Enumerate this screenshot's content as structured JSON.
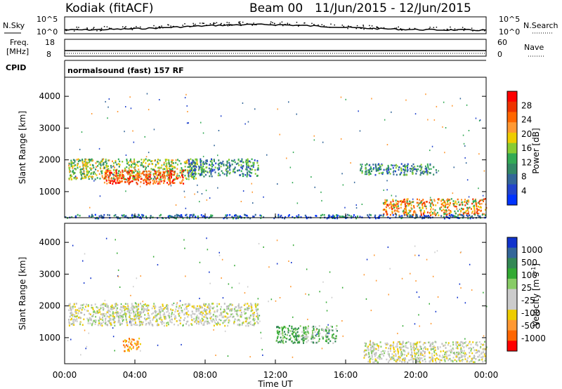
{
  "header": {
    "radar": "Kodiak (fitACF)",
    "beam": "Beam 00",
    "dates": "11/Jun/2015 - 12/Jun/2015"
  },
  "panels_top": {
    "nsky_label": "N.Sky",
    "nsky_ticks": [
      "10^5",
      "10^0"
    ],
    "nsearch_label": "N.Search",
    "nsearch_ticks": [
      "10^5",
      "10^0"
    ],
    "freq_label_1": "Freq.",
    "freq_label_2": "[MHz]",
    "freq_ticks": [
      "18",
      "8"
    ],
    "nave_label": "Nave",
    "nave_ticks": [
      "60",
      "0"
    ],
    "cpid_label": "CPID",
    "cpid_text": "normalsound (fast) 157 RF"
  },
  "axes": {
    "ylabel": "Slant Range [km]",
    "yticks": [
      "4000",
      "3000",
      "2000",
      "1000"
    ],
    "xticks": [
      "00:00",
      "04:00",
      "08:00",
      "12:00",
      "16:00",
      "20:00",
      "00:00"
    ],
    "xlabel": "Time UT"
  },
  "power_colorbar": {
    "label": "Power [dB]",
    "ticks": [
      "28",
      "24",
      "20",
      "16",
      "12",
      "8",
      "4"
    ],
    "colors": [
      "#ff0000",
      "#ee3300",
      "#ff6600",
      "#ff9933",
      "#eecc00",
      "#88cc33",
      "#33aa55",
      "#338866",
      "#336699",
      "#2244cc",
      "#0033ff"
    ]
  },
  "velocity_colorbar": {
    "label": "Velocity [m s",
    "label_sup": "-1",
    "label_end": "]",
    "ticks": [
      "1000",
      "500",
      "100",
      "25",
      "-25",
      "-100",
      "-500",
      "-1000"
    ],
    "colors": [
      "#1133cc",
      "#336699",
      "#338855",
      "#33aa33",
      "#88cc66",
      "#cccccc",
      "#cccccc",
      "#eecc00",
      "#ff9933",
      "#ff6600",
      "#ff0000"
    ]
  },
  "chart_data": {
    "type": "heatmap",
    "time_range_h": [
      0,
      24
    ],
    "range_km": [
      180,
      4600
    ],
    "power_bands": [
      {
        "t0": 0.2,
        "t1": 7.5,
        "r0": 1400,
        "r1": 2050,
        "level": "green-orange"
      },
      {
        "t0": 2.2,
        "t1": 6.8,
        "r0": 1250,
        "r1": 1700,
        "level": "red-orange"
      },
      {
        "t0": 7.0,
        "t1": 11.0,
        "r0": 1500,
        "r1": 2050,
        "level": "green-blue"
      },
      {
        "t0": 16.8,
        "t1": 21.2,
        "r0": 1550,
        "r1": 1900,
        "level": "green-blue"
      },
      {
        "t0": 18.0,
        "t1": 24.0,
        "r0": 280,
        "r1": 800,
        "level": "orange-green"
      },
      {
        "t0": 0.0,
        "t1": 24.0,
        "r0": 180,
        "r1": 300,
        "level": "blue-green"
      }
    ],
    "velocity_bands": [
      {
        "t0": 0.2,
        "t1": 11.0,
        "r0": 1400,
        "r1": 2100,
        "level": "grey"
      },
      {
        "t0": 17.0,
        "t1": 24.0,
        "r0": 250,
        "r1": 900,
        "level": "grey"
      },
      {
        "t0": 3.3,
        "t1": 4.3,
        "r0": 600,
        "r1": 1000,
        "level": "orange"
      },
      {
        "t0": 12.0,
        "t1": 15.5,
        "r0": 850,
        "r1": 1400,
        "level": "green"
      }
    ]
  }
}
